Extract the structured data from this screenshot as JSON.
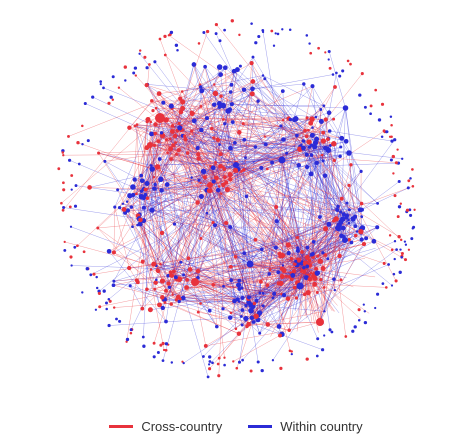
{
  "chart_data": {
    "type": "network",
    "colors": {
      "cross": "#e8323c",
      "within": "#2b2bd6"
    },
    "legend": [
      {
        "label": "Cross-country",
        "color": "#e8323c"
      },
      {
        "label": "Within country",
        "color": "#2b2bd6"
      }
    ],
    "legend_position": "bottom-center"
  }
}
